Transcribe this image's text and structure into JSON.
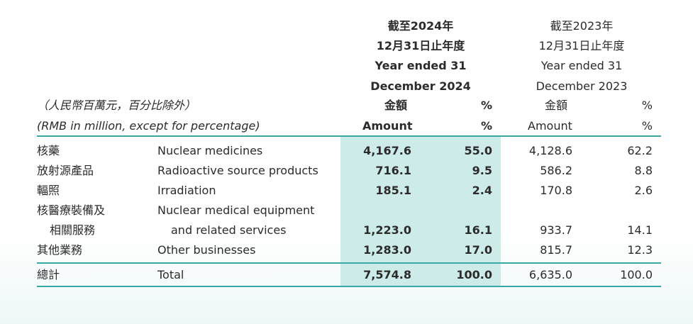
{
  "header": {
    "y2024": {
      "zh_line1": "截至2024年",
      "zh_line2": "12月31日止年度",
      "en_line1": "Year ended 31",
      "en_line2": "December 2024",
      "amount_zh": "金額",
      "pct_zh": "%",
      "amount_en": "Amount",
      "pct_en": "%"
    },
    "y2023": {
      "zh_line1": "截至2023年",
      "zh_line2": "12月31日止年度",
      "en_line1": "Year ended 31",
      "en_line2": "December 2023",
      "amount_zh": "金額",
      "pct_zh": "%",
      "amount_en": "Amount",
      "pct_en": "%"
    },
    "unit_zh": "（人民幣百萬元，百分比除外）",
    "unit_en": "(RMB in million, except for percentage)"
  },
  "rows": [
    {
      "zh": "核藥",
      "en": "Nuclear medicines",
      "amt2024": "4,167.6",
      "pct2024": "55.0",
      "amt2023": "4,128.6",
      "pct2023": "62.2"
    },
    {
      "zh": "放射源產品",
      "en": "Radioactive source products",
      "amt2024": "716.1",
      "pct2024": "9.5",
      "amt2023": "586.2",
      "pct2023": "8.8"
    },
    {
      "zh": "輻照",
      "en": "Irradiation",
      "amt2024": "185.1",
      "pct2024": "2.4",
      "amt2023": "170.8",
      "pct2023": "2.6"
    },
    {
      "zh": "核醫療裝備及",
      "zh2": "相關服務",
      "en": "Nuclear medical equipment",
      "en2": "and related services",
      "amt2024": "1,223.0",
      "pct2024": "16.1",
      "amt2023": "933.7",
      "pct2023": "14.1"
    },
    {
      "zh": "其他業務",
      "en": "Other businesses",
      "amt2024": "1,283.0",
      "pct2024": "17.0",
      "amt2023": "815.7",
      "pct2023": "12.3"
    }
  ],
  "total": {
    "zh": "總計",
    "en": "Total",
    "amt2024": "7,574.8",
    "pct2024": "100.0",
    "amt2023": "6,635.0",
    "pct2023": "100.0"
  },
  "colors": {
    "highlight": "#cdebe9",
    "rule": "#37a8a5",
    "text": "#2b2b2b"
  }
}
